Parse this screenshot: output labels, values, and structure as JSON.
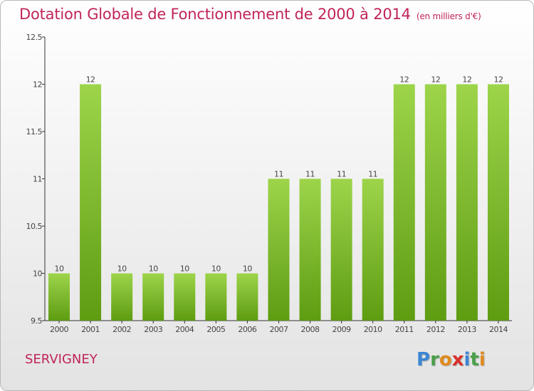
{
  "title": "Dotation Globale de Fonctionnement de 2000 à 2014",
  "unit_note": "(en milliers d'€)",
  "commune": "SERVIGNEY",
  "logo": {
    "letters": [
      "P",
      "r",
      "o",
      "x",
      "i",
      "t",
      "i"
    ],
    "colors": [
      "#3a86d4",
      "#4aa04a",
      "#e08a1e",
      "#d9302b",
      "#3a86d4",
      "#4aa04a",
      "#e08a1e"
    ]
  },
  "colors": {
    "bar_light": "#9dd44a",
    "bar_dark": "#5e9c12",
    "title": "#c0245a"
  },
  "chart_data": {
    "type": "bar",
    "title": "Dotation Globale de Fonctionnement de 2000 à 2014",
    "xlabel": "",
    "ylabel": "",
    "ylim": [
      9.5,
      12.5
    ],
    "yticks": [
      "9.5",
      "10",
      "10.5",
      "11",
      "11.5",
      "12",
      "12.5"
    ],
    "ytick_values": [
      9.5,
      10,
      10.5,
      11,
      11.5,
      12,
      12.5
    ],
    "grid": false,
    "categories": [
      "2000",
      "2001",
      "2002",
      "2003",
      "2004",
      "2005",
      "2006",
      "2007",
      "2008",
      "2009",
      "2010",
      "2011",
      "2012",
      "2013",
      "2014"
    ],
    "values": [
      10,
      12,
      10,
      10,
      10,
      10,
      10,
      11,
      11,
      11,
      11,
      12,
      12,
      12,
      12
    ],
    "value_labels": [
      "10",
      "12",
      "10",
      "10",
      "10",
      "10",
      "10",
      "11",
      "11",
      "11",
      "11",
      "12",
      "12",
      "12",
      "12"
    ]
  }
}
